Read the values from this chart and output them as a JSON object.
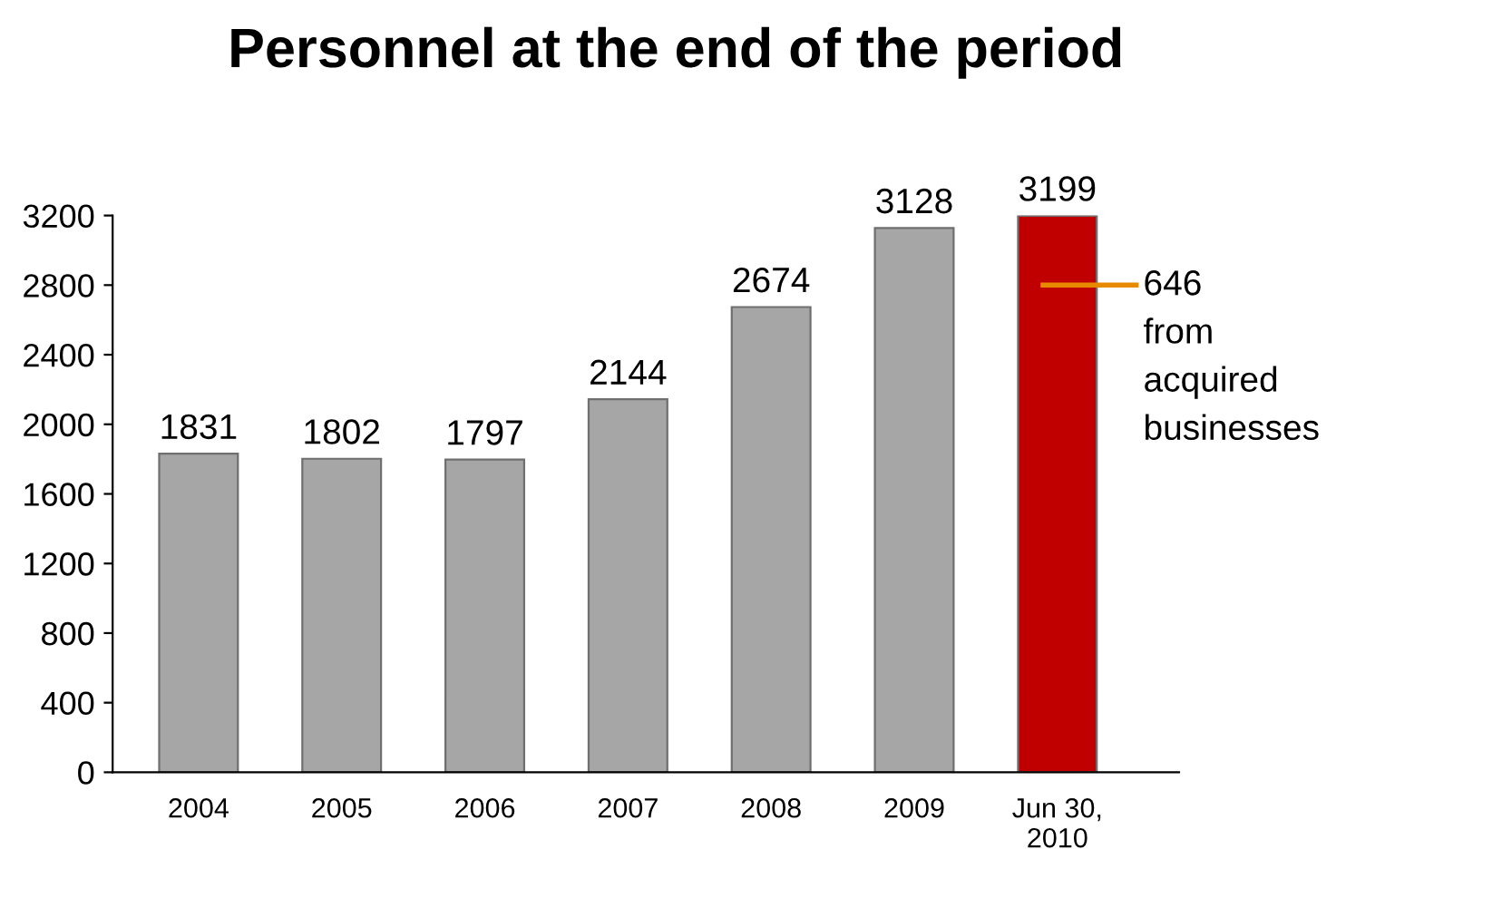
{
  "chart_data": {
    "type": "bar",
    "title": "Personnel at the end of the period",
    "categories": [
      "2004",
      "2005",
      "2006",
      "2007",
      "2008",
      "2009",
      "Jun 30,\n2010"
    ],
    "values": [
      1831,
      1802,
      1797,
      2144,
      2674,
      3128,
      3199
    ],
    "colors": [
      "#a6a6a6",
      "#a6a6a6",
      "#a6a6a6",
      "#a6a6a6",
      "#a6a6a6",
      "#a6a6a6",
      "#c00000"
    ],
    "ylim": [
      0,
      3200
    ],
    "yticks": [
      0,
      400,
      800,
      1200,
      1600,
      2000,
      2400,
      2800,
      3200
    ],
    "data_labels": true,
    "grid": false,
    "legend": false,
    "annotations": [
      "646\nfrom\nacquired\nbusinesses"
    ]
  }
}
